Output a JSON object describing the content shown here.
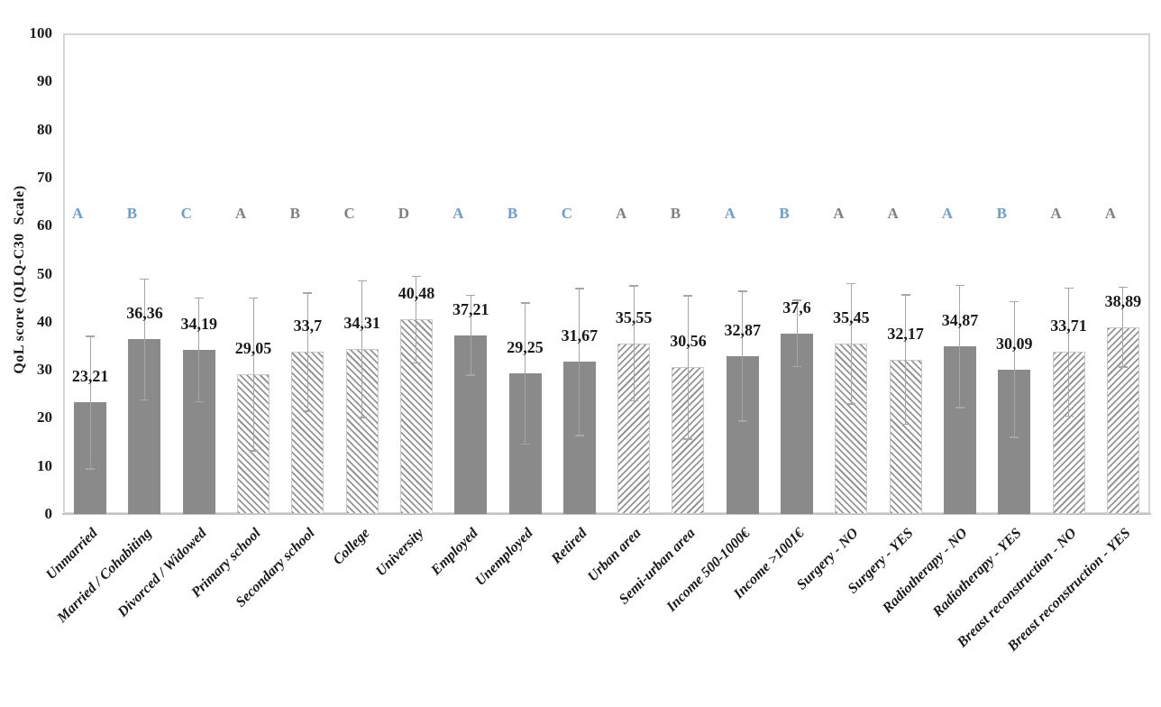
{
  "chart_data": {
    "type": "bar",
    "title": "",
    "xlabel": "",
    "ylabel": "QoL score (QLQ-C30  Scale)",
    "ylim": [
      0,
      100
    ],
    "yticks": [
      0,
      10,
      20,
      30,
      40,
      50,
      60,
      70,
      80,
      90,
      100
    ],
    "grid": false,
    "legend": false,
    "decimal_separator": ",",
    "categories": [
      "Unmarried",
      "Married / Cohabiting",
      "Divorced / Widowed",
      "Primary school",
      "Secondary school",
      "College",
      "University",
      "Employed",
      "Unemployed",
      "Retired",
      "Urban area",
      "Semi-urban area",
      "Income 500-1000€",
      "Income >1001€",
      "Surgery - NO",
      "Surgery - YES",
      "Radiotherapy - NO",
      "Radiotherapy - YES",
      "Breast reconstruction - NO",
      "Breast reconstruction - YES"
    ],
    "values": [
      23.21,
      36.36,
      34.19,
      29.05,
      33.7,
      34.31,
      40.48,
      37.21,
      29.25,
      31.67,
      35.55,
      30.56,
      32.87,
      37.6,
      35.45,
      32.17,
      34.87,
      30.09,
      33.71,
      38.89
    ],
    "bars": [
      {
        "category": "Unmarried",
        "value": 23.21,
        "label": "23,21",
        "sig_letter": "A",
        "sig_color": "blue",
        "pattern": "solid",
        "error": 13.8
      },
      {
        "category": "Married / Cohabiting",
        "value": 36.36,
        "label": "36,36",
        "sig_letter": "B",
        "sig_color": "blue",
        "pattern": "solid",
        "error": 12.6
      },
      {
        "category": "Divorced / Widowed",
        "value": 34.19,
        "label": "34,19",
        "sig_letter": "C",
        "sig_color": "blue",
        "pattern": "solid",
        "error": 10.8
      },
      {
        "category": "Primary school",
        "value": 29.05,
        "label": "29,05",
        "sig_letter": "A",
        "sig_color": "gray",
        "pattern": "diag-down",
        "error": 15.9
      },
      {
        "category": "Secondary school",
        "value": 33.7,
        "label": "33,7",
        "sig_letter": "B",
        "sig_color": "gray",
        "pattern": "diag-down",
        "error": 12.3
      },
      {
        "category": "College",
        "value": 34.31,
        "label": "34,31",
        "sig_letter": "C",
        "sig_color": "gray",
        "pattern": "diag-down",
        "error": 14.2
      },
      {
        "category": "University",
        "value": 40.48,
        "label": "40,48",
        "sig_letter": "D",
        "sig_color": "gray",
        "pattern": "diag-down",
        "error": 9.0
      },
      {
        "category": "Employed",
        "value": 37.21,
        "label": "37,21",
        "sig_letter": "A",
        "sig_color": "blue",
        "pattern": "solid",
        "error": 8.3
      },
      {
        "category": "Unemployed",
        "value": 29.25,
        "label": "29,25",
        "sig_letter": "B",
        "sig_color": "blue",
        "pattern": "solid",
        "error": 14.7
      },
      {
        "category": "Retired",
        "value": 31.67,
        "label": "31,67",
        "sig_letter": "C",
        "sig_color": "blue",
        "pattern": "solid",
        "error": 15.3
      },
      {
        "category": "Urban area",
        "value": 35.55,
        "label": "35,55",
        "sig_letter": "A",
        "sig_color": "gray",
        "pattern": "diag-up",
        "error": 12.0
      },
      {
        "category": "Semi-urban area",
        "value": 30.56,
        "label": "30,56",
        "sig_letter": "B",
        "sig_color": "gray",
        "pattern": "diag-up",
        "error": 14.9
      },
      {
        "category": "Income 500-1000€",
        "value": 32.87,
        "label": "32,87",
        "sig_letter": "A",
        "sig_color": "blue",
        "pattern": "solid",
        "error": 13.5
      },
      {
        "category": "Income >1001€",
        "value": 37.6,
        "label": "37,6",
        "sig_letter": "B",
        "sig_color": "blue",
        "pattern": "solid",
        "error": 6.9
      },
      {
        "category": "Surgery - NO",
        "value": 35.45,
        "label": "35,45",
        "sig_letter": "A",
        "sig_color": "gray",
        "pattern": "diag-down",
        "error": 12.5
      },
      {
        "category": "Surgery - YES",
        "value": 32.17,
        "label": "32,17",
        "sig_letter": "A",
        "sig_color": "gray",
        "pattern": "diag-down",
        "error": 13.5
      },
      {
        "category": "Radiotherapy - NO",
        "value": 34.87,
        "label": "34,87",
        "sig_letter": "A",
        "sig_color": "blue",
        "pattern": "solid",
        "error": 12.7
      },
      {
        "category": "Radiotherapy - YES",
        "value": 30.09,
        "label": "30,09",
        "sig_letter": "B",
        "sig_color": "blue",
        "pattern": "solid",
        "error": 14.1
      },
      {
        "category": "Breast reconstruction - NO",
        "value": 33.71,
        "label": "33,71",
        "sig_letter": "A",
        "sig_color": "gray",
        "pattern": "diag-up",
        "error": 13.3
      },
      {
        "category": "Breast reconstruction - YES",
        "value": 38.89,
        "label": "38,89",
        "sig_letter": "A",
        "sig_color": "gray",
        "pattern": "diag-up",
        "error": 8.3
      }
    ],
    "sig_letter_row_value": 62.5
  },
  "colors": {
    "bar_fill": "#8A8A8A",
    "hatch_line": "#949494",
    "hatch_bg": "#FFFFFF",
    "hatch_border": "#C8C8C8",
    "sig_blue": "#6D9CCD",
    "sig_gray": "#808080",
    "error_bar": "#A6A6A6",
    "plot_border": "#D6D6D6",
    "axis_line": "#C4C4C4",
    "text": "#1A1A1A"
  }
}
